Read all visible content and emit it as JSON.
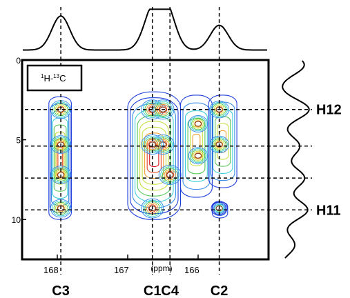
{
  "chart_data": {
    "type": "heatmap",
    "subtype": "2D NMR contour plot with 1D projections",
    "inset_label": {
      "main": "H-C",
      "sup1": "1",
      "sup2": "13"
    },
    "x_axis": {
      "label": "(ppm)",
      "range": [
        168.5,
        165.0
      ],
      "reversed": true,
      "ticks": [
        {
          "value": 168,
          "label": "168"
        },
        {
          "value": 167,
          "label": "167"
        },
        {
          "value": 166,
          "label": "166"
        }
      ]
    },
    "y_axis": {
      "range": [
        0,
        12.5
      ],
      "reversed": true,
      "ticks": [
        {
          "value": 0,
          "label": "0"
        },
        {
          "value": 5,
          "label": "5"
        },
        {
          "value": 10,
          "label": "10"
        }
      ]
    },
    "carbon_guides": [
      {
        "name": "C3",
        "ppm": 167.95
      },
      {
        "name": "C1",
        "ppm": 166.65
      },
      {
        "name": "C4",
        "ppm": 166.4
      },
      {
        "name": "C2",
        "ppm": 165.7
      }
    ],
    "proton_guides": [
      {
        "name": "H12",
        "value": 3.1
      },
      {
        "name": "",
        "value": 5.4
      },
      {
        "name": "",
        "value": 7.4
      },
      {
        "name": "H11",
        "value": 9.4
      }
    ],
    "contour_blobs": [
      {
        "x": [
          168.12,
          167.8
        ],
        "y": [
          2.3,
          10.0
        ],
        "intensity": 0.75,
        "peaks": [
          {
            "x": 167.95,
            "y": 3.1
          },
          {
            "x": 167.95,
            "y": 5.3
          },
          {
            "x": 167.95,
            "y": 7.2
          },
          {
            "x": 167.95,
            "y": 9.3
          }
        ]
      },
      {
        "x": [
          167.0,
          166.25
        ],
        "y": [
          2.0,
          10.0
        ],
        "intensity": 1.0,
        "peaks": [
          {
            "x": 166.65,
            "y": 3.1
          },
          {
            "x": 166.5,
            "y": 3.1
          },
          {
            "x": 166.5,
            "y": 5.3
          },
          {
            "x": 166.65,
            "y": 5.3
          },
          {
            "x": 166.4,
            "y": 7.2
          },
          {
            "x": 166.65,
            "y": 9.3
          }
        ]
      },
      {
        "x": [
          166.25,
          165.8
        ],
        "y": [
          2.2,
          8.6
        ],
        "intensity": 0.55,
        "peaks": [
          {
            "x": 166.0,
            "y": 4.0
          },
          {
            "x": 166.0,
            "y": 6.0
          }
        ]
      },
      {
        "x": [
          165.85,
          165.45
        ],
        "y": [
          2.2,
          8.0
        ],
        "intensity": 0.6,
        "peaks": [
          {
            "x": 165.7,
            "y": 3.1
          },
          {
            "x": 165.7,
            "y": 5.3
          }
        ]
      },
      {
        "x": [
          165.8,
          165.58
        ],
        "y": [
          8.9,
          9.9
        ],
        "intensity": 0.15,
        "peaks": [
          {
            "x": 165.7,
            "y": 9.3
          }
        ]
      }
    ],
    "top_projection_peaks": [
      {
        "ppm": 167.95,
        "height": 0.85
      },
      {
        "ppm": 166.65,
        "height": 0.92
      },
      {
        "ppm": 166.45,
        "height": 1.0
      },
      {
        "ppm": 165.7,
        "height": 0.62
      }
    ],
    "right_projection_peaks": [
      {
        "value": 0.3,
        "height": 0.85
      },
      {
        "value": 3.1,
        "height": 1.0
      },
      {
        "value": 5.4,
        "height": 0.7
      },
      {
        "value": 7.4,
        "height": 0.85
      },
      {
        "value": 9.4,
        "height": 0.95
      },
      {
        "value": 11.6,
        "height": 0.55
      }
    ],
    "colorscale": [
      "#1f3fdc",
      "#3a8fe8",
      "#3fcfd8",
      "#58c85a",
      "#c8e040",
      "#f0a030",
      "#e84820",
      "#d81818"
    ],
    "grid": false,
    "legend": "none"
  }
}
